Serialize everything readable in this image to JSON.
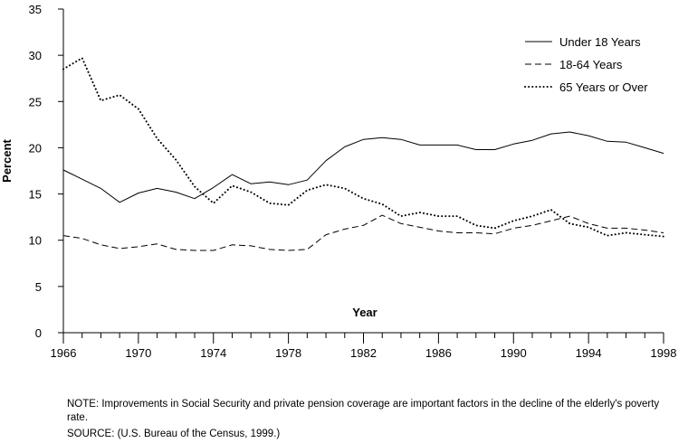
{
  "chart_data": {
    "type": "line",
    "title": "",
    "xlabel": "Year",
    "ylabel": "Percent",
    "xlim": [
      1966,
      1998
    ],
    "ylim": [
      0,
      35
    ],
    "xticks": [
      1966,
      1970,
      1974,
      1978,
      1982,
      1986,
      1990,
      1994,
      1998
    ],
    "yticks": [
      0,
      5,
      10,
      15,
      20,
      25,
      30,
      35
    ],
    "grid": false,
    "legend_position": "top-right",
    "x": [
      1966,
      1967,
      1968,
      1969,
      1970,
      1971,
      1972,
      1973,
      1974,
      1975,
      1976,
      1977,
      1978,
      1979,
      1980,
      1981,
      1982,
      1983,
      1984,
      1985,
      1986,
      1987,
      1988,
      1989,
      1990,
      1991,
      1992,
      1993,
      1994,
      1995,
      1996,
      1997,
      1998
    ],
    "series": [
      {
        "name": "Under 18 Years",
        "style": "solid",
        "values": [
          17.6,
          16.6,
          15.6,
          14.1,
          15.1,
          15.6,
          15.2,
          14.5,
          15.7,
          17.1,
          16.1,
          16.3,
          16.0,
          16.5,
          18.6,
          20.1,
          20.9,
          21.1,
          20.9,
          20.3,
          20.3,
          20.3,
          19.8,
          19.8,
          20.4,
          20.8,
          21.5,
          21.7,
          21.3,
          20.7,
          20.6,
          20.0,
          19.4
        ]
      },
      {
        "name": "18-64 Years",
        "style": "dashed",
        "values": [
          10.5,
          10.2,
          9.5,
          9.1,
          9.3,
          9.6,
          9.0,
          8.9,
          8.9,
          9.5,
          9.4,
          9.0,
          8.9,
          9.0,
          10.6,
          11.2,
          11.6,
          12.7,
          11.8,
          11.4,
          11.0,
          10.8,
          10.8,
          10.7,
          11.3,
          11.6,
          12.1,
          12.6,
          11.8,
          11.3,
          11.3,
          11.1,
          10.8
        ]
      },
      {
        "name": "65 Years or Over",
        "style": "dotted",
        "values": [
          28.5,
          29.7,
          25.1,
          25.7,
          24.2,
          21.0,
          18.7,
          15.8,
          14.0,
          15.9,
          15.2,
          14.0,
          13.8,
          15.4,
          16.0,
          15.6,
          14.5,
          13.9,
          12.6,
          13.0,
          12.6,
          12.6,
          11.6,
          11.3,
          12.1,
          12.6,
          13.3,
          11.8,
          11.4,
          10.5,
          10.8,
          10.6,
          10.4
        ]
      }
    ]
  },
  "notes": {
    "note": "NOTE: Improvements in Social Security and private pension coverage are important factors in the decline of the elderly's poverty rate.",
    "source": "SOURCE: (U.S. Bureau of the Census, 1999.)"
  }
}
